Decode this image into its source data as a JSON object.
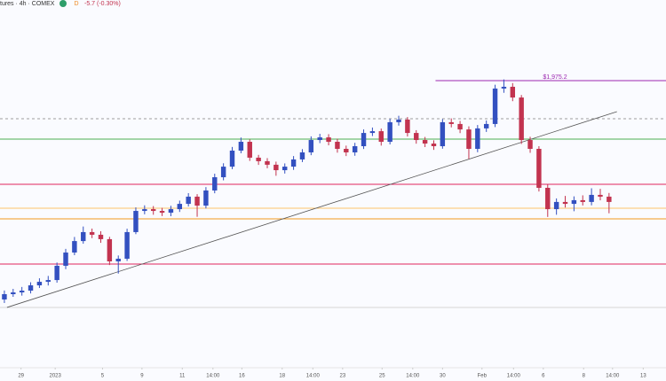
{
  "chart_data": {
    "type": "candlestick",
    "title": "tures · 4h · COMEX",
    "badge": "D",
    "subtitle": "-5.7 (-0.30%)",
    "open": [
      1826.4,
      1830.0,
      1831.2,
      1832.4,
      1836.0,
      1838.4,
      1839.6,
      1849.3,
      1858.3,
      1866.1,
      1872.2,
      1870.4,
      1867.4,
      1852.3,
      1854.1,
      1872.2,
      1886.6,
      1887.8,
      1886.6,
      1885.4,
      1887.8,
      1891.4,
      1896.3,
      1890.2,
      1900.5,
      1909.5,
      1916.7,
      1927.6,
      1933.6,
      1922.8,
      1920.4,
      1918.0,
      1914.3,
      1916.7,
      1921.6,
      1926.4,
      1934.8,
      1936.6,
      1933.6,
      1928.8,
      1926.4,
      1930.6,
      1939.6,
      1940.8,
      1933.6,
      1946.9,
      1948.7,
      1939.6,
      1934.8,
      1932.4,
      1930.6,
      1946.9,
      1945.7,
      1942.0,
      1928.8,
      1942.7,
      1945.7,
      1969.8,
      1971.0,
      1963.7,
      1934.8,
      1928.8,
      1902.3,
      1887.8,
      1892.7,
      1891.4,
      1893.9,
      1892.7,
      1897.5,
      1896.3
    ],
    "high": [
      1832.5,
      1833.6,
      1834.9,
      1838.1,
      1840.8,
      1842.4,
      1851.5,
      1860.8,
      1868.9,
      1876.0,
      1874.6,
      1872.8,
      1869.0,
      1856.3,
      1874.5,
      1889.0,
      1890.4,
      1889.9,
      1888.7,
      1890.1,
      1893.6,
      1898.7,
      1898.0,
      1902.8,
      1911.9,
      1919.0,
      1930.1,
      1936.5,
      1935.2,
      1924.7,
      1922.5,
      1920.1,
      1918.9,
      1923.9,
      1928.6,
      1937.3,
      1939.0,
      1938.8,
      1935.7,
      1931.0,
      1932.9,
      1942.0,
      1943.3,
      1942.6,
      1949.2,
      1951.3,
      1950.4,
      1941.5,
      1936.9,
      1934.6,
      1949.0,
      1949.5,
      1947.8,
      1944.1,
      1945.0,
      1948.1,
      1972.4,
      1976.0,
      1973.5,
      1965.4,
      1937.0,
      1930.6,
      1904.5,
      1895.1,
      1896.8,
      1896.5,
      1897.2,
      1902.0,
      1901.6,
      1898.8
    ],
    "low": [
      1824.0,
      1828.2,
      1829.0,
      1830.5,
      1834.2,
      1835.9,
      1837.8,
      1847.0,
      1856.5,
      1864.3,
      1868.1,
      1864.9,
      1849.8,
      1844.0,
      1852.6,
      1870.8,
      1884.3,
      1884.0,
      1883.1,
      1883.0,
      1885.9,
      1889.6,
      1882.6,
      1888.3,
      1898.6,
      1907.4,
      1915.0,
      1925.8,
      1920.6,
      1917.9,
      1915.6,
      1910.5,
      1912.0,
      1914.5,
      1919.8,
      1924.5,
      1932.7,
      1931.2,
      1926.2,
      1923.9,
      1924.1,
      1928.7,
      1937.5,
      1931.0,
      1931.8,
      1944.6,
      1937.2,
      1932.3,
      1930.0,
      1928.1,
      1928.9,
      1943.4,
      1939.5,
      1922.0,
      1926.5,
      1940.3,
      1943.6,
      1966.9,
      1961.2,
      1932.1,
      1926.1,
      1899.8,
      1882.5,
      1884.0,
      1888.9,
      1886.4,
      1890.3,
      1890.4,
      1893.8,
      1885.0
    ],
    "close": [
      1830.0,
      1831.2,
      1832.4,
      1836.0,
      1838.4,
      1839.6,
      1849.3,
      1858.3,
      1866.1,
      1872.2,
      1870.4,
      1867.4,
      1852.3,
      1854.1,
      1872.2,
      1886.6,
      1887.8,
      1886.6,
      1885.4,
      1887.8,
      1891.4,
      1896.3,
      1890.2,
      1900.5,
      1909.5,
      1916.7,
      1927.6,
      1933.6,
      1922.8,
      1920.4,
      1918.0,
      1914.3,
      1916.7,
      1921.6,
      1926.4,
      1934.8,
      1936.6,
      1933.6,
      1928.8,
      1926.4,
      1930.6,
      1939.6,
      1940.8,
      1933.6,
      1946.9,
      1948.7,
      1939.6,
      1934.8,
      1932.4,
      1930.6,
      1946.9,
      1945.7,
      1942.0,
      1928.8,
      1942.7,
      1945.7,
      1969.8,
      1971.0,
      1963.7,
      1934.8,
      1928.8,
      1902.3,
      1887.8,
      1892.7,
      1891.4,
      1893.9,
      1892.7,
      1897.5,
      1896.3,
      1892.7
    ],
    "up_color": "#3350c0",
    "down_color": "#c2334f",
    "xlim": [
      0,
      76
    ],
    "xticks": [
      {
        "value": 2.4,
        "label": "29"
      },
      {
        "value": 6.3,
        "label": "2023"
      },
      {
        "value": 11.7,
        "label": "5"
      },
      {
        "value": 16.2,
        "label": "9"
      },
      {
        "value": 20.8,
        "label": "11"
      },
      {
        "value": 24.3,
        "label": "14:00"
      },
      {
        "value": 27.6,
        "label": "16"
      },
      {
        "value": 32.2,
        "label": "18"
      },
      {
        "value": 35.7,
        "label": "14:00"
      },
      {
        "value": 39.1,
        "label": "23"
      },
      {
        "value": 43.6,
        "label": "25"
      },
      {
        "value": 47.1,
        "label": "14:00"
      },
      {
        "value": 50.5,
        "label": "30"
      },
      {
        "value": 55.0,
        "label": "Feb"
      },
      {
        "value": 58.6,
        "label": "14:00"
      },
      {
        "value": 62.0,
        "label": "6"
      },
      {
        "value": 66.6,
        "label": "8"
      },
      {
        "value": 69.9,
        "label": "14:00"
      },
      {
        "value": 73.4,
        "label": "13"
      }
    ],
    "ylim": [
      1780,
      2030
    ],
    "levels": [
      {
        "value": 1975.2,
        "label": "$1,975.2",
        "color": "#9c27b0",
        "from": 49.7
      },
      {
        "value": 1949.3,
        "color": "#9e9e9e",
        "dash": true
      },
      {
        "value": 1935.4,
        "color": "#4caf50"
      },
      {
        "value": 1904.7,
        "color": "#e0245e"
      },
      {
        "value": 1888.4,
        "color": "#ffc46b"
      },
      {
        "value": 1881.2,
        "color": "#f39a1e"
      },
      {
        "value": 1850.5,
        "color": "#e0245e"
      },
      {
        "value": 1821.0,
        "color": "#d6d6d6"
      }
    ],
    "trendline": {
      "x": [
        0.8,
        70.4
      ],
      "y": [
        1821.0,
        1954.1
      ],
      "color": "#555555"
    }
  }
}
